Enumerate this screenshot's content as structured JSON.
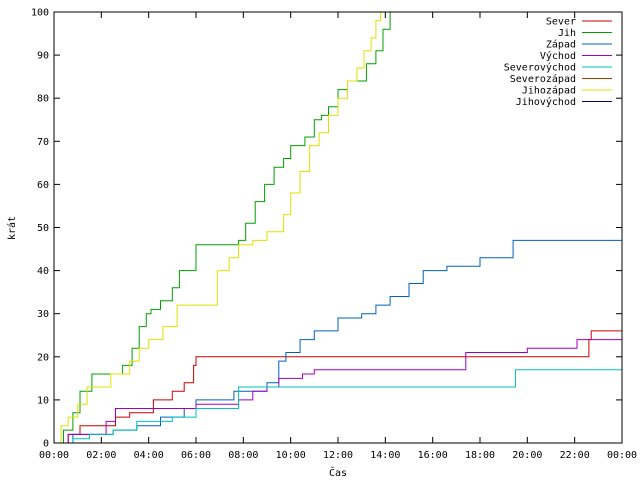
{
  "chart_data": {
    "type": "line",
    "title": "",
    "xlabel": "Čas",
    "ylabel": "krát",
    "xlim": [
      0,
      24
    ],
    "ylim": [
      0,
      100
    ],
    "grid": false,
    "legend_position": "top-right",
    "x_ticks": [
      {
        "value": 0,
        "label": "00:00"
      },
      {
        "value": 2,
        "label": "02:00"
      },
      {
        "value": 4,
        "label": "04:00"
      },
      {
        "value": 6,
        "label": "06:00"
      },
      {
        "value": 8,
        "label": "08:00"
      },
      {
        "value": 10,
        "label": "10:00"
      },
      {
        "value": 12,
        "label": "12:00"
      },
      {
        "value": 14,
        "label": "14:00"
      },
      {
        "value": 16,
        "label": "16:00"
      },
      {
        "value": 18,
        "label": "18:00"
      },
      {
        "value": 20,
        "label": "20:00"
      },
      {
        "value": 22,
        "label": "22:00"
      },
      {
        "value": 24,
        "label": "00:00"
      }
    ],
    "y_ticks": [
      {
        "value": 0,
        "label": "0"
      },
      {
        "value": 10,
        "label": "10"
      },
      {
        "value": 20,
        "label": "20"
      },
      {
        "value": 30,
        "label": "30"
      },
      {
        "value": 40,
        "label": "40"
      },
      {
        "value": 50,
        "label": "50"
      },
      {
        "value": 60,
        "label": "60"
      },
      {
        "value": 70,
        "label": "70"
      },
      {
        "value": 80,
        "label": "80"
      },
      {
        "value": 90,
        "label": "90"
      },
      {
        "value": 100,
        "label": "100"
      }
    ],
    "series": [
      {
        "name": "Sever",
        "color": "#cc0000",
        "x": [
          0,
          0.6,
          1.1,
          2.6,
          3.2,
          4.2,
          5.0,
          5.5,
          5.9,
          6.0,
          7.0,
          8.0,
          9.0,
          10.0,
          12.0,
          14.0,
          16.0,
          18.0,
          20.0,
          22.0,
          22.6,
          22.7,
          24.0
        ],
        "y": [
          0,
          2,
          4,
          6,
          7,
          10,
          12,
          14,
          18,
          20,
          20,
          20,
          20,
          20,
          20,
          20,
          20,
          20,
          20,
          20,
          24,
          26,
          26
        ]
      },
      {
        "name": "Jih",
        "color": "#00a000",
        "x": [
          0,
          0.4,
          0.8,
          1.1,
          1.6,
          2.2,
          2.9,
          3.3,
          3.6,
          3.9,
          4.1,
          4.5,
          5.0,
          5.3,
          5.6,
          6.0,
          7.0,
          7.8,
          8.1,
          8.5,
          8.9,
          9.3,
          9.7,
          10.0,
          10.6,
          11.0,
          11.3,
          11.6,
          12.0,
          12.4,
          12.8,
          13.2,
          13.6,
          13.9,
          14.2
        ],
        "y": [
          0,
          3,
          7,
          12,
          16,
          16,
          18,
          22,
          27,
          30,
          31,
          33,
          36,
          40,
          40,
          46,
          46,
          47,
          51,
          56,
          60,
          64,
          66,
          69,
          71,
          75,
          76,
          78,
          82,
          84,
          84,
          88,
          91,
          96,
          100
        ]
      },
      {
        "name": "Západ",
        "color": "#0060c0",
        "x": [
          0,
          0.8,
          1.5,
          2.5,
          3.5,
          4.5,
          5.5,
          6.0,
          6.8,
          7.6,
          8.0,
          9.0,
          9.5,
          9.8,
          10.4,
          11.0,
          12.0,
          13.0,
          13.6,
          14.2,
          15.0,
          15.6,
          16.6,
          18.0,
          19.0,
          19.4,
          20.0,
          22.0,
          24.0
        ],
        "y": [
          0,
          2,
          2,
          3,
          4,
          6,
          8,
          10,
          10,
          12,
          12,
          14,
          19,
          21,
          24,
          26,
          29,
          30,
          32,
          34,
          37,
          40,
          41,
          43,
          43,
          47,
          47,
          47,
          47
        ]
      },
      {
        "name": "Východ",
        "color": "#a000c0",
        "x": [
          0,
          0.6,
          1.3,
          2.2,
          2.6,
          3.4,
          4.0,
          5.0,
          6.0,
          7.0,
          7.8,
          8.4,
          9.0,
          9.5,
          10.5,
          11.0,
          12.0,
          14.0,
          16.0,
          17.0,
          17.4,
          18.0,
          20.0,
          22.0,
          22.1,
          24.0
        ],
        "y": [
          0,
          2,
          2,
          5,
          8,
          8,
          8,
          8,
          9,
          9,
          10,
          12,
          13,
          15,
          16,
          17,
          17,
          17,
          17,
          17,
          21,
          21,
          22,
          22,
          24,
          24
        ]
      },
      {
        "name": "Severovýchod",
        "color": "#00c0c0",
        "x": [
          0,
          0.8,
          1.5,
          2.5,
          3.5,
          5.0,
          6.0,
          7.0,
          7.8,
          8.6,
          9.0,
          10.0,
          12.0,
          14.0,
          16.0,
          18.0,
          19.5,
          20.0,
          22.0,
          24.0
        ],
        "y": [
          0,
          1,
          2,
          3,
          5,
          6,
          8,
          8,
          13,
          13,
          13,
          13,
          13,
          13,
          13,
          13,
          17,
          17,
          17,
          17
        ]
      },
      {
        "name": "Severozápad",
        "color": "#a04000",
        "x": [
          0,
          1.0,
          2.0,
          4.0,
          6.0,
          8.0,
          10.0,
          12.0,
          14.0,
          16.0,
          18.0,
          20.0,
          22.0,
          24.0
        ],
        "y": [
          0,
          0,
          0,
          0,
          0,
          0,
          0,
          0,
          0,
          0,
          0,
          0,
          0,
          0
        ]
      },
      {
        "name": "Jihozápad",
        "color": "#e0e000",
        "x": [
          0,
          0.3,
          0.6,
          1.0,
          1.4,
          1.8,
          2.4,
          3.2,
          3.6,
          4.0,
          4.6,
          5.2,
          6.0,
          6.9,
          7.4,
          7.8,
          8.4,
          9.0,
          9.7,
          10.0,
          10.4,
          10.8,
          11.2,
          11.6,
          12.0,
          12.4,
          12.8,
          13.1,
          13.4,
          13.6,
          13.8
        ],
        "y": [
          0,
          4,
          6,
          9,
          13,
          13,
          16,
          19,
          22,
          24,
          27,
          32,
          32,
          40,
          43,
          46,
          47,
          49,
          53,
          58,
          63,
          69,
          72,
          76,
          80,
          84,
          87,
          91,
          94,
          98,
          100
        ]
      },
      {
        "name": "Jihovýchod",
        "color": "#000090",
        "x": [
          0,
          2,
          4,
          6,
          8,
          10,
          12,
          14,
          16,
          18,
          20,
          22,
          24
        ],
        "y": [
          0,
          0,
          0,
          0,
          0,
          0,
          0,
          0,
          0,
          0,
          0,
          0,
          0
        ]
      }
    ]
  }
}
